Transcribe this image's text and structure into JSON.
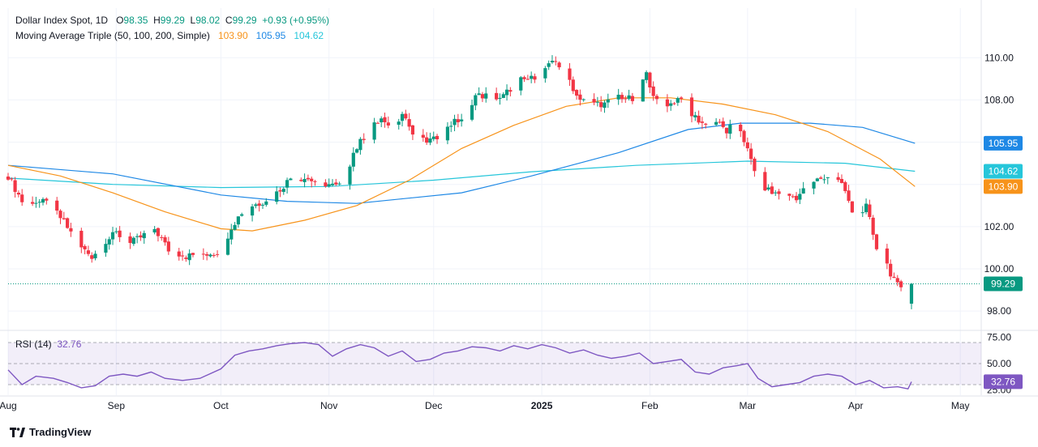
{
  "legend": {
    "symbol": "Dollar Index Spot, 1D",
    "o_key": "O",
    "o_val": "98.35",
    "h_key": "H",
    "h_val": "99.29",
    "l_key": "L",
    "l_val": "98.02",
    "c_key": "C",
    "c_val": "99.29",
    "change": "+0.93 (+0.95%)",
    "ma_title": "Moving Average Triple (50, 100, 200, Simple)",
    "ma50": "103.90",
    "ma100": "105.95",
    "ma200": "104.62"
  },
  "rsi": {
    "title": "RSI (14)",
    "value": "32.76"
  },
  "brand": "TradingView",
  "colors": {
    "up": "#089981",
    "down": "#f23645",
    "ma50": "#f7931a",
    "ma100": "#1e88e5",
    "ma200": "#26c6da",
    "rsi": "#7e57c2"
  },
  "chart_data": {
    "type": "candlestick",
    "price_axis": {
      "ticks": [
        98,
        100,
        102,
        104,
        106,
        108,
        110
      ],
      "tick_labels": [
        "98.00",
        "100.00",
        "102.00",
        "",
        "",
        "108.00",
        "110.00"
      ],
      "ylim": [
        97.2,
        111.2
      ]
    },
    "price_tags": [
      {
        "label": "105.95",
        "value": 105.95,
        "color": "#1e88e5"
      },
      {
        "label": "104.62",
        "value": 104.62,
        "color": "#26c6da"
      },
      {
        "label": "103.90",
        "value": 103.9,
        "color": "#f7931a"
      },
      {
        "label": "99.29",
        "value": 99.29,
        "color": "#089981"
      }
    ],
    "last_close": 99.29,
    "x_axis_labels": [
      {
        "label": "Aug",
        "day": 0
      },
      {
        "label": "Sep",
        "day": 31
      },
      {
        "label": "Oct",
        "day": 61
      },
      {
        "label": "Nov",
        "day": 92
      },
      {
        "label": "Dec",
        "day": 122
      },
      {
        "label": "2025",
        "day": 153,
        "bold": true
      },
      {
        "label": "Feb",
        "day": 184
      },
      {
        "label": "Mar",
        "day": 212
      },
      {
        "label": "Apr",
        "day": 243
      },
      {
        "label": "May",
        "day": 273
      }
    ],
    "price_path": [
      [
        0,
        104.4
      ],
      [
        4,
        103.2
      ],
      [
        7,
        103.2
      ],
      [
        12,
        103.1
      ],
      [
        16,
        102.2
      ],
      [
        21,
        101.0
      ],
      [
        24,
        100.6
      ],
      [
        28,
        101.3
      ],
      [
        31,
        101.7
      ],
      [
        35,
        101.2
      ],
      [
        38,
        101.5
      ],
      [
        42,
        101.9
      ],
      [
        46,
        100.9
      ],
      [
        51,
        100.6
      ],
      [
        56,
        100.7
      ],
      [
        61,
        100.8
      ],
      [
        64,
        102.0
      ],
      [
        68,
        102.9
      ],
      [
        72,
        103.1
      ],
      [
        77,
        103.6
      ],
      [
        81,
        104.3
      ],
      [
        85,
        104.3
      ],
      [
        89,
        104.1
      ],
      [
        92,
        104.0
      ],
      [
        94,
        103.9
      ],
      [
        96,
        104.0
      ],
      [
        99,
        105.5
      ],
      [
        103,
        106.5
      ],
      [
        107,
        107.1
      ],
      [
        110,
        106.4
      ],
      [
        113,
        107.5
      ],
      [
        117,
        106.0
      ],
      [
        122,
        106.1
      ],
      [
        126,
        106.8
      ],
      [
        130,
        107.1
      ],
      [
        134,
        108.2
      ],
      [
        137,
        108.2
      ],
      [
        141,
        108.0
      ],
      [
        146,
        108.9
      ],
      [
        150,
        109.0
      ],
      [
        153,
        109.4
      ],
      [
        157,
        109.8
      ],
      [
        160,
        109.3
      ],
      [
        163,
        108.2
      ],
      [
        167,
        107.9
      ],
      [
        171,
        107.8
      ],
      [
        175,
        108.2
      ],
      [
        179,
        108.0
      ],
      [
        183,
        109.2
      ],
      [
        186,
        107.9
      ],
      [
        190,
        107.8
      ],
      [
        193,
        108.2
      ],
      [
        196,
        107.3
      ],
      [
        200,
        106.8
      ],
      [
        203,
        107.0
      ],
      [
        206,
        106.5
      ],
      [
        209,
        107.1
      ],
      [
        212,
        105.6
      ],
      [
        215,
        104.1
      ],
      [
        219,
        103.6
      ],
      [
        223,
        103.5
      ],
      [
        226,
        103.4
      ],
      [
        230,
        104.0
      ],
      [
        233,
        104.3
      ],
      [
        236,
        104.3
      ],
      [
        239,
        104.1
      ],
      [
        243,
        102.2
      ],
      [
        246,
        103.0
      ],
      [
        249,
        100.9
      ],
      [
        252,
        100.2
      ],
      [
        254,
        99.4
      ],
      [
        256,
        99.0
      ],
      [
        258,
        98.35
      ],
      [
        259,
        99.29
      ]
    ],
    "ma50": [
      [
        0,
        104.9
      ],
      [
        15,
        104.4
      ],
      [
        30,
        103.6
      ],
      [
        45,
        102.7
      ],
      [
        61,
        101.9
      ],
      [
        70,
        101.8
      ],
      [
        85,
        102.3
      ],
      [
        100,
        103.0
      ],
      [
        115,
        104.2
      ],
      [
        130,
        105.7
      ],
      [
        145,
        106.8
      ],
      [
        160,
        107.7
      ],
      [
        175,
        108.1
      ],
      [
        190,
        108.1
      ],
      [
        205,
        107.8
      ],
      [
        220,
        107.3
      ],
      [
        235,
        106.5
      ],
      [
        250,
        105.2
      ],
      [
        260,
        103.9
      ]
    ],
    "ma100": [
      [
        0,
        104.9
      ],
      [
        30,
        104.5
      ],
      [
        61,
        103.5
      ],
      [
        80,
        103.2
      ],
      [
        100,
        103.1
      ],
      [
        130,
        103.6
      ],
      [
        150,
        104.4
      ],
      [
        175,
        105.5
      ],
      [
        195,
        106.6
      ],
      [
        210,
        106.9
      ],
      [
        230,
        106.9
      ],
      [
        245,
        106.7
      ],
      [
        260,
        105.95
      ]
    ],
    "ma200": [
      [
        0,
        104.3
      ],
      [
        30,
        104.0
      ],
      [
        61,
        103.85
      ],
      [
        92,
        103.9
      ],
      [
        122,
        104.2
      ],
      [
        150,
        104.6
      ],
      [
        180,
        104.9
      ],
      [
        212,
        105.1
      ],
      [
        240,
        105.0
      ],
      [
        260,
        104.62
      ]
    ],
    "rsi_axis": {
      "ticks": [
        25,
        50,
        75
      ],
      "tick_labels": [
        "25.00",
        "50.00",
        "75.00"
      ],
      "ylim": [
        20,
        80
      ],
      "band": [
        30,
        70
      ],
      "midline": 50
    },
    "rsi_path": [
      [
        0,
        44
      ],
      [
        4,
        30
      ],
      [
        8,
        38
      ],
      [
        13,
        36
      ],
      [
        17,
        32
      ],
      [
        21,
        27
      ],
      [
        25,
        29
      ],
      [
        29,
        38
      ],
      [
        33,
        40
      ],
      [
        37,
        38
      ],
      [
        41,
        42
      ],
      [
        45,
        36
      ],
      [
        50,
        34
      ],
      [
        55,
        36
      ],
      [
        61,
        45
      ],
      [
        65,
        58
      ],
      [
        69,
        62
      ],
      [
        73,
        64
      ],
      [
        77,
        67
      ],
      [
        81,
        69
      ],
      [
        85,
        70
      ],
      [
        89,
        68
      ],
      [
        93,
        57
      ],
      [
        97,
        64
      ],
      [
        101,
        68
      ],
      [
        105,
        65
      ],
      [
        109,
        57
      ],
      [
        113,
        62
      ],
      [
        117,
        52
      ],
      [
        121,
        54
      ],
      [
        125,
        60
      ],
      [
        129,
        62
      ],
      [
        133,
        66
      ],
      [
        137,
        65
      ],
      [
        141,
        62
      ],
      [
        145,
        67
      ],
      [
        149,
        64
      ],
      [
        153,
        68
      ],
      [
        157,
        65
      ],
      [
        161,
        60
      ],
      [
        165,
        63
      ],
      [
        169,
        58
      ],
      [
        173,
        55
      ],
      [
        177,
        57
      ],
      [
        181,
        60
      ],
      [
        185,
        50
      ],
      [
        189,
        52
      ],
      [
        193,
        54
      ],
      [
        197,
        42
      ],
      [
        201,
        40
      ],
      [
        205,
        46
      ],
      [
        209,
        48
      ],
      [
        212,
        50
      ],
      [
        215,
        36
      ],
      [
        219,
        28
      ],
      [
        223,
        30
      ],
      [
        227,
        32
      ],
      [
        231,
        38
      ],
      [
        235,
        40
      ],
      [
        239,
        38
      ],
      [
        243,
        30
      ],
      [
        247,
        34
      ],
      [
        251,
        27
      ],
      [
        255,
        28
      ],
      [
        258,
        26
      ],
      [
        259,
        32.76
      ]
    ]
  }
}
